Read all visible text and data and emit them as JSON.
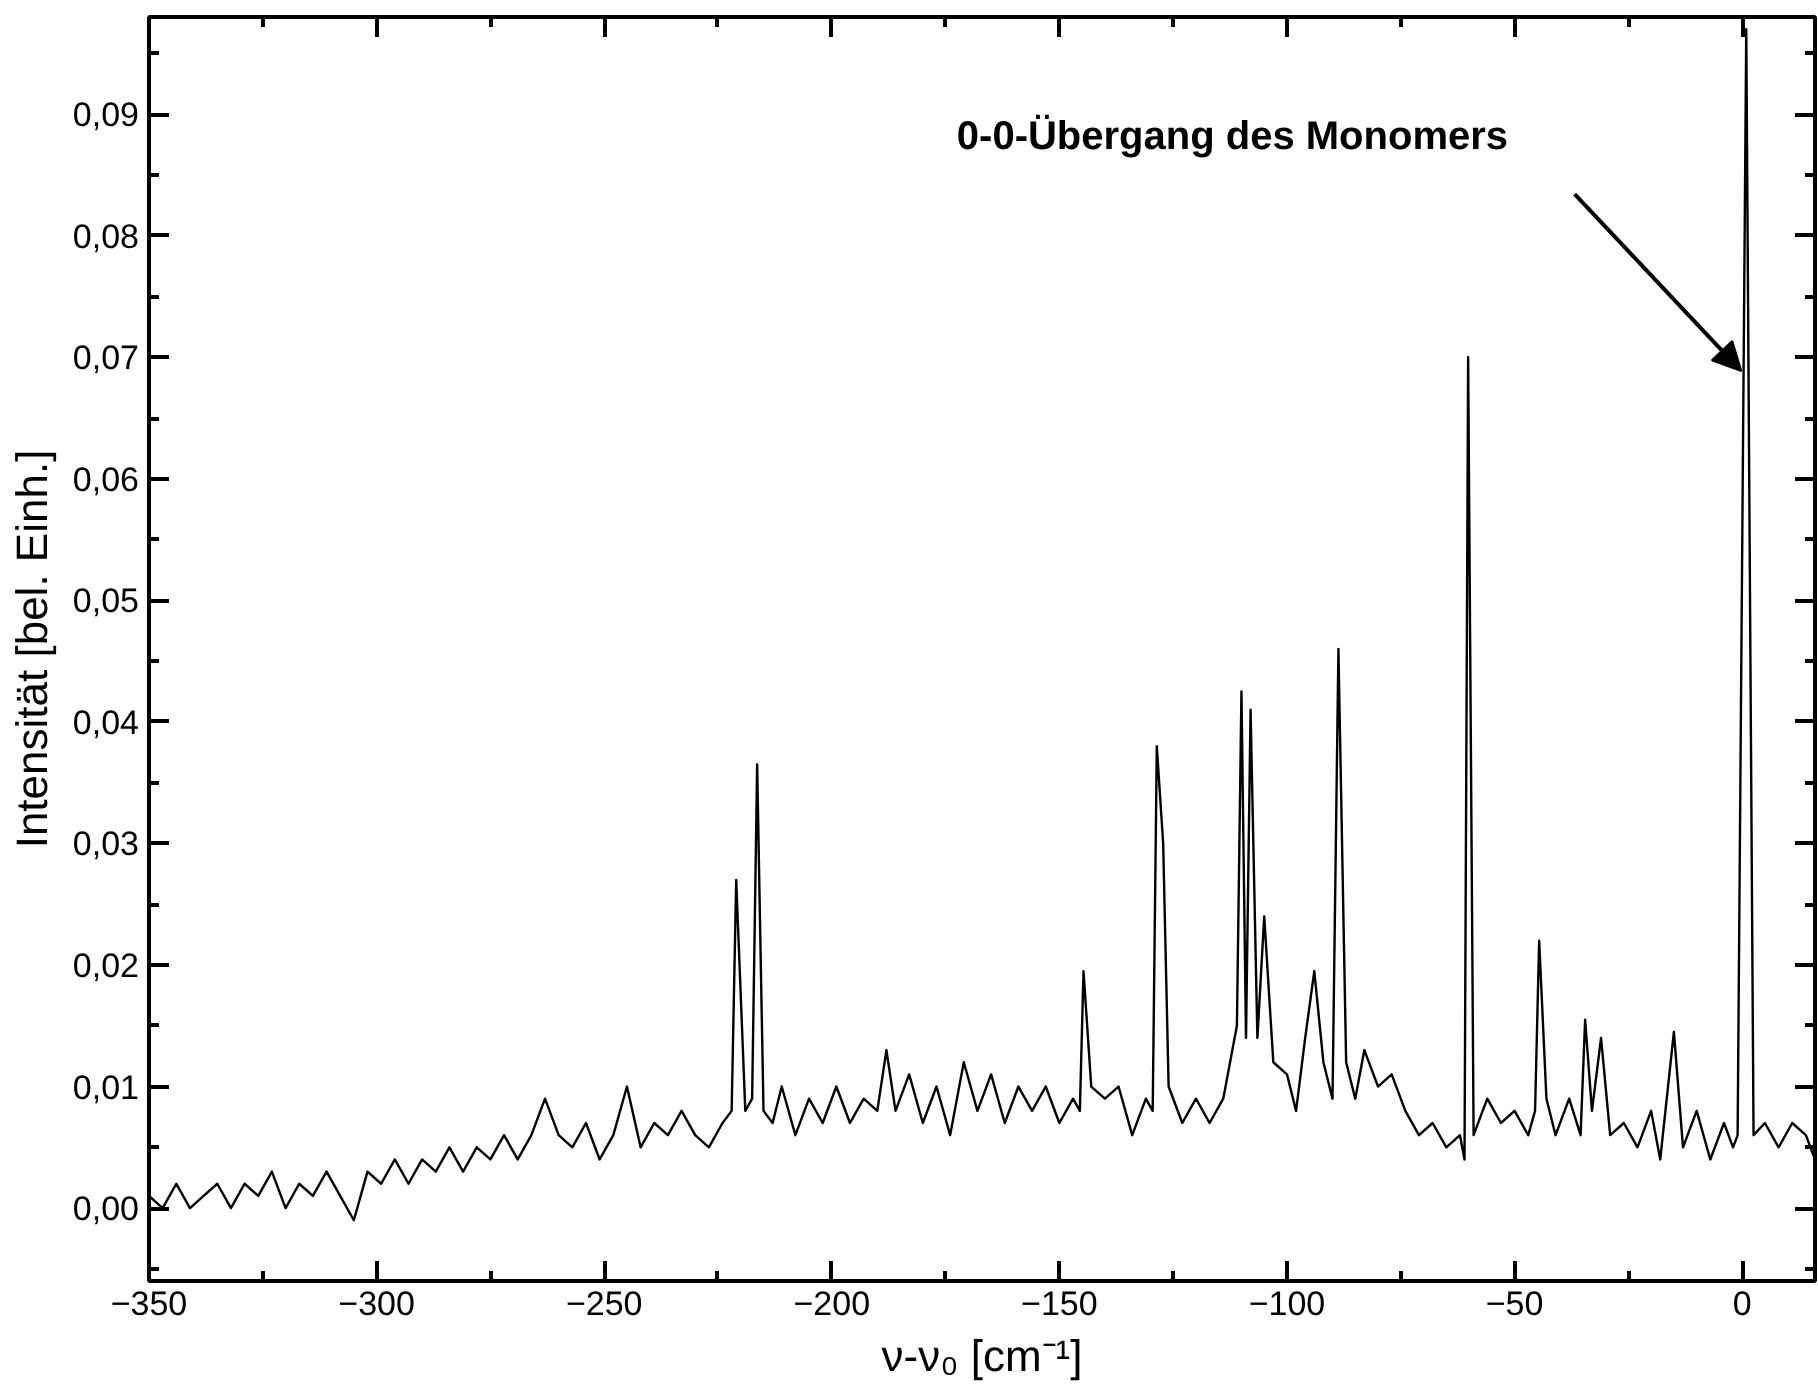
{
  "chart_data": {
    "type": "line",
    "xlabel": "ν-ν₀ [cm⁻¹]",
    "ylabel": "Intensität [bel. Einh.]",
    "annotations": [
      "0-0-Übergang des Monomers"
    ],
    "xlim": [
      -350,
      16
    ],
    "ylim": [
      -0.006,
      0.098
    ],
    "xticks": [
      -350,
      -300,
      -250,
      -200,
      -150,
      -100,
      -50,
      0
    ],
    "yticks": [
      {
        "value": 0,
        "label": "0,00"
      },
      {
        "value": 0.01,
        "label": "0,01"
      },
      {
        "value": 0.02,
        "label": "0,02"
      },
      {
        "value": 0.03,
        "label": "0,03"
      },
      {
        "value": 0.04,
        "label": "0,04"
      },
      {
        "value": 0.05,
        "label": "0,05"
      },
      {
        "value": 0.06,
        "label": "0,06"
      },
      {
        "value": 0.07,
        "label": "0,07"
      },
      {
        "value": 0.08,
        "label": "0,08"
      },
      {
        "value": 0.09,
        "label": "0,09"
      }
    ],
    "grid": false,
    "marker": "none",
    "line_style": "solid",
    "series": [
      {
        "color": "#000000",
        "x": [
          -350,
          -347,
          -344,
          -341,
          -338,
          -335,
          -332,
          -329,
          -326,
          -323,
          -320,
          -317,
          -314,
          -311,
          -308,
          -305,
          -302,
          -299,
          -296,
          -293,
          -290,
          -287,
          -284,
          -281,
          -278,
          -275,
          -272,
          -269,
          -266,
          -263,
          -260,
          -257,
          -254,
          -251,
          -248,
          -245,
          -242,
          -239,
          -236,
          -233,
          -230,
          -227,
          -224,
          -222,
          -221,
          -219,
          -217.5,
          -216.4,
          -215,
          -213,
          -211,
          -208,
          -205,
          -202,
          -199,
          -196,
          -193,
          -190,
          -188,
          -186,
          -183,
          -180,
          -177,
          -174,
          -171,
          -168,
          -165,
          -162,
          -159,
          -156,
          -153,
          -150,
          -147,
          -145.5,
          -144.7,
          -143,
          -140,
          -137,
          -134,
          -131,
          -129.5,
          -128.6,
          -127.2,
          -126,
          -123,
          -120,
          -117,
          -114,
          -112,
          -111,
          -110,
          -109,
          -108,
          -106.5,
          -105,
          -103,
          -100,
          -98,
          -96,
          -94,
          -92,
          -90,
          -88.7,
          -87,
          -85,
          -83,
          -80,
          -77,
          -74,
          -71,
          -68,
          -65,
          -62,
          -61,
          -60.2,
          -59,
          -56,
          -53,
          -50,
          -47,
          -45.5,
          -44.6,
          -43,
          -41,
          -38,
          -35.5,
          -34.5,
          -33,
          -31,
          -29,
          -26,
          -23,
          -20,
          -18,
          -15,
          -13,
          -10,
          -7,
          -4,
          -2,
          -1,
          0.9,
          2.5,
          5,
          8,
          11,
          14,
          16
        ],
        "values": [
          0.001,
          0.0,
          0.002,
          0.0,
          0.001,
          0.002,
          0.0,
          0.002,
          0.001,
          0.003,
          0.0,
          0.002,
          0.001,
          0.003,
          0.001,
          -0.001,
          0.003,
          0.002,
          0.004,
          0.002,
          0.004,
          0.003,
          0.005,
          0.003,
          0.005,
          0.004,
          0.006,
          0.004,
          0.006,
          0.009,
          0.006,
          0.005,
          0.007,
          0.004,
          0.006,
          0.01,
          0.005,
          0.007,
          0.006,
          0.008,
          0.006,
          0.005,
          0.007,
          0.008,
          0.027,
          0.008,
          0.009,
          0.0365,
          0.008,
          0.007,
          0.01,
          0.006,
          0.009,
          0.007,
          0.01,
          0.007,
          0.009,
          0.008,
          0.013,
          0.008,
          0.011,
          0.007,
          0.01,
          0.006,
          0.012,
          0.008,
          0.011,
          0.007,
          0.01,
          0.008,
          0.01,
          0.007,
          0.009,
          0.008,
          0.0195,
          0.01,
          0.009,
          0.01,
          0.006,
          0.009,
          0.008,
          0.038,
          0.03,
          0.01,
          0.007,
          0.009,
          0.007,
          0.009,
          0.013,
          0.015,
          0.0425,
          0.014,
          0.041,
          0.014,
          0.024,
          0.012,
          0.011,
          0.008,
          0.014,
          0.0195,
          0.012,
          0.009,
          0.046,
          0.012,
          0.009,
          0.013,
          0.01,
          0.011,
          0.008,
          0.006,
          0.007,
          0.005,
          0.006,
          0.004,
          0.07,
          0.006,
          0.009,
          0.007,
          0.008,
          0.006,
          0.008,
          0.022,
          0.009,
          0.006,
          0.009,
          0.006,
          0.0155,
          0.008,
          0.014,
          0.006,
          0.007,
          0.005,
          0.008,
          0.004,
          0.0145,
          0.005,
          0.008,
          0.004,
          0.007,
          0.005,
          0.006,
          0.097,
          0.006,
          0.007,
          0.005,
          0.007,
          0.006,
          0.004
        ]
      }
    ]
  }
}
